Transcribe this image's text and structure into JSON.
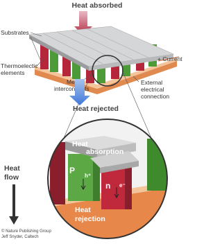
{
  "title": "Heat absorbed",
  "labels": {
    "substrates": "Substrates",
    "thermoelectric": [
      "Thermoelectic",
      "elements"
    ],
    "metal": [
      "Metal",
      "interconnects"
    ],
    "current": "+ Current",
    "external": [
      "External",
      "electrical",
      "connection"
    ],
    "heat_rejected": "Heat rejected",
    "heat_flow": [
      "Heat",
      "flow"
    ]
  },
  "detail": {
    "heat_absorption": [
      "Heat",
      "absorption"
    ],
    "p": "P",
    "h": "h⁺",
    "n": "n",
    "e": "e⁻",
    "heat_rejection": [
      "Heat",
      "rejection"
    ]
  },
  "credit": [
    "© Nature Publishing Group",
    "Jeff Snyder, Caltech"
  ]
}
